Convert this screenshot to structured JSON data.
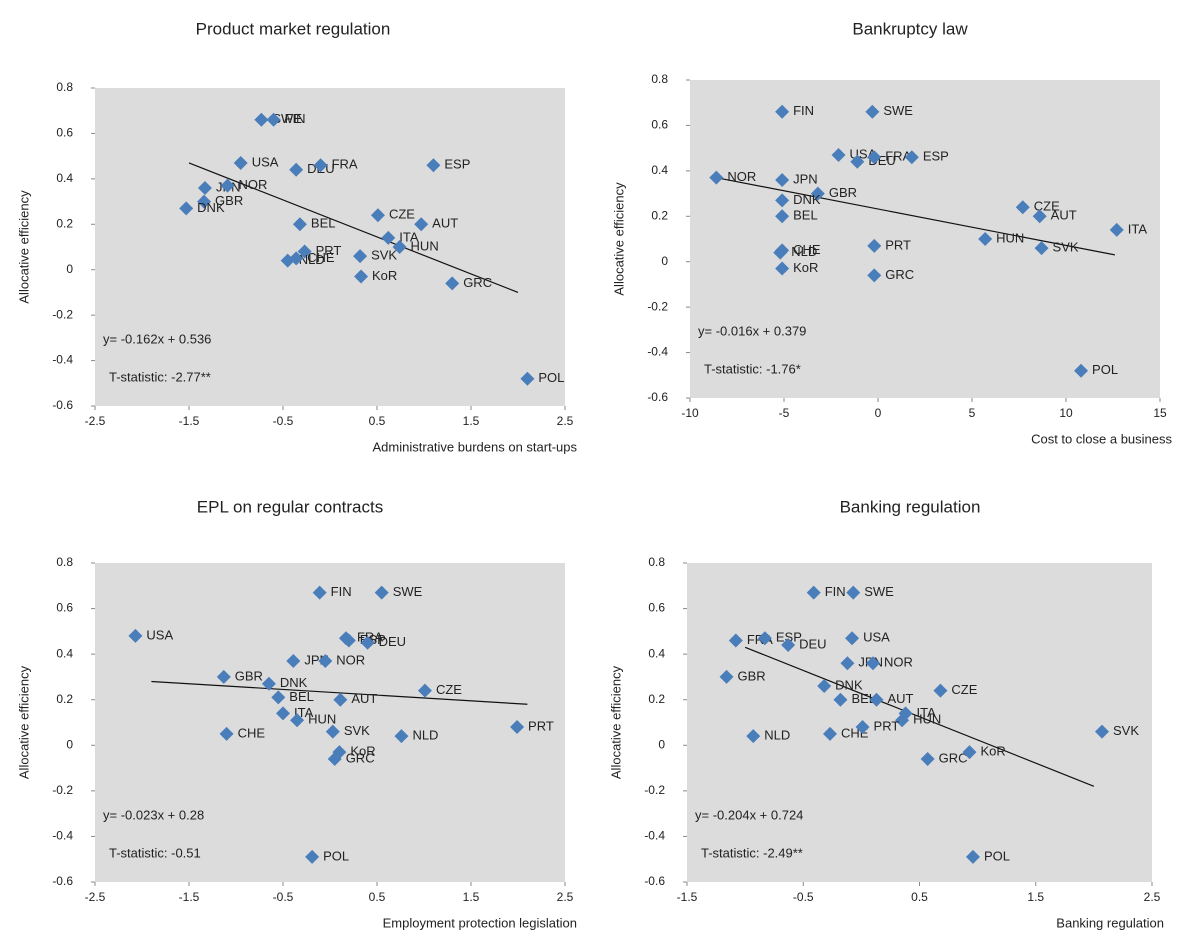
{
  "chart_data": [
    {
      "type": "scatter",
      "title": "Product market regulation",
      "x_label": "Administrative burdens on start-ups",
      "y_label": "Allocative efficiency",
      "color": "#4a7ebb",
      "labels": [
        "SWE",
        "FIN",
        "USA",
        "DEU",
        "FRA",
        "ESP",
        "JPN",
        "NOR",
        "GBR",
        "DNK",
        "BEL",
        "CZE",
        "AUT",
        "ITA",
        "HUN",
        "SVK",
        "PRT",
        "NLD",
        "CHE",
        "KoR",
        "GRC",
        "POL"
      ],
      "x": [
        -0.73,
        -0.6,
        -0.95,
        -0.36,
        -0.1,
        1.1,
        -1.33,
        -1.09,
        -1.34,
        -1.53,
        -0.32,
        0.51,
        0.97,
        0.62,
        0.74,
        0.32,
        -0.27,
        -0.45,
        -0.36,
        0.33,
        1.3,
        2.1
      ],
      "y": [
        0.66,
        0.66,
        0.47,
        0.44,
        0.46,
        0.46,
        0.36,
        0.37,
        0.3,
        0.27,
        0.2,
        0.24,
        0.2,
        0.14,
        0.1,
        0.06,
        0.08,
        0.04,
        0.05,
        -0.03,
        -0.06,
        -0.48
      ],
      "trend": {
        "x": [
          -1.5,
          2.0
        ],
        "y": [
          0.47,
          -0.1
        ]
      },
      "equation": "y= -0.162x + 0.536",
      "t_statistic": "T-statistic: -2.77**",
      "xlim": [
        -2.5,
        2.5
      ],
      "xticks": [
        -2.5,
        -1.5,
        -0.5,
        0.5,
        1.5,
        2.5
      ],
      "ylim": [
        -0.6,
        0.8
      ],
      "yticks": [
        0.8,
        0.6,
        0.4,
        0.2,
        0,
        -0.2,
        -0.4,
        -0.6
      ]
    },
    {
      "type": "scatter",
      "title": "Bankruptcy law",
      "x_label": "Cost to close a business",
      "y_label": "Allocative efficiency",
      "color": "#4a7ebb",
      "labels": [
        "FIN",
        "SWE",
        "USA",
        "DEU",
        "FRA",
        "ESP",
        "NOR",
        "JPN",
        "GBR",
        "DNK",
        "BEL",
        "CZE",
        "AUT",
        "ITA",
        "HUN",
        "CHE",
        "NLD",
        "SVK",
        "PRT",
        "KoR",
        "GRC",
        "POL"
      ],
      "x": [
        -5.1,
        -0.3,
        -2.1,
        -1.1,
        -0.2,
        1.8,
        -8.6,
        -5.1,
        -3.2,
        -5.1,
        -5.1,
        7.7,
        8.6,
        12.7,
        5.7,
        -5.1,
        -5.2,
        8.7,
        -0.2,
        -5.1,
        -0.2,
        10.8
      ],
      "y": [
        0.66,
        0.66,
        0.47,
        0.44,
        0.46,
        0.46,
        0.37,
        0.36,
        0.3,
        0.27,
        0.2,
        0.24,
        0.2,
        0.14,
        0.1,
        0.05,
        0.04,
        0.06,
        0.07,
        -0.03,
        -0.06,
        -0.48
      ],
      "trend": {
        "x": [
          -8.6,
          12.6
        ],
        "y": [
          0.37,
          0.03
        ]
      },
      "equation": "y= -0.016x + 0.379",
      "t_statistic": "T-statistic: -1.76*",
      "xlim": [
        -10,
        15
      ],
      "xticks": [
        -10,
        -5,
        0,
        5,
        10,
        15
      ],
      "ylim": [
        -0.6,
        0.8
      ],
      "yticks": [
        0.8,
        0.6,
        0.4,
        0.2,
        0,
        -0.2,
        -0.4,
        -0.6
      ]
    },
    {
      "type": "scatter",
      "title": "EPL on regular contracts",
      "x_label": "Employment protection legislation",
      "y_label": "Allocative efficiency",
      "color": "#4a7ebb",
      "labels": [
        "FIN",
        "SWE",
        "USA",
        "FRA",
        "ESP",
        "DEU",
        "JPN",
        "NOR",
        "GBR",
        "DNK",
        "BEL",
        "AUT",
        "CZE",
        "ITA",
        "HUN",
        "SVK",
        "CHE",
        "NLD",
        "PRT",
        "KoR",
        "GRC",
        "POL"
      ],
      "x": [
        -0.11,
        0.55,
        -2.07,
        0.17,
        0.2,
        0.4,
        -0.39,
        -0.05,
        -1.13,
        -0.65,
        -0.55,
        0.11,
        1.01,
        -0.5,
        -0.35,
        0.03,
        -1.1,
        0.76,
        1.99,
        0.1,
        0.05,
        -0.19
      ],
      "y": [
        0.67,
        0.67,
        0.48,
        0.47,
        0.46,
        0.45,
        0.37,
        0.37,
        0.3,
        0.27,
        0.21,
        0.2,
        0.24,
        0.14,
        0.11,
        0.06,
        0.05,
        0.04,
        0.08,
        -0.03,
        -0.06,
        -0.49
      ],
      "trend": {
        "x": [
          -1.9,
          2.1
        ],
        "y": [
          0.28,
          0.18
        ]
      },
      "equation": "y= -0.023x + 0.28",
      "t_statistic": "T-statistic: -0.51",
      "xlim": [
        -2.5,
        2.5
      ],
      "xticks": [
        -2.5,
        -1.5,
        -0.5,
        0.5,
        1.5,
        2.5
      ],
      "ylim": [
        -0.6,
        0.8
      ],
      "yticks": [
        0.8,
        0.6,
        0.4,
        0.2,
        0,
        -0.2,
        -0.4,
        -0.6
      ]
    },
    {
      "type": "scatter",
      "title": "Banking regulation",
      "x_label": "Banking regulation",
      "y_label": "Allocative efficiency",
      "color": "#4a7ebb",
      "labels": [
        "FIN",
        "SWE",
        "FRA",
        "ESP",
        "DEU",
        "USA",
        "JPN",
        "NOR",
        "GBR",
        "DNK",
        "BEL",
        "AUT",
        "CZE",
        "ITA",
        "HUN",
        "NLD",
        "CHE",
        "PRT",
        "SVK",
        "GRC",
        "KoR",
        "POL"
      ],
      "x": [
        -0.41,
        -0.07,
        -1.08,
        -0.83,
        -0.63,
        -0.08,
        -0.12,
        0.1,
        -1.16,
        -0.32,
        -0.18,
        0.13,
        0.68,
        0.38,
        0.35,
        -0.93,
        -0.27,
        0.01,
        2.07,
        0.57,
        0.93,
        0.96
      ],
      "y": [
        0.67,
        0.67,
        0.46,
        0.47,
        0.44,
        0.47,
        0.36,
        0.36,
        0.3,
        0.26,
        0.2,
        0.2,
        0.24,
        0.14,
        0.11,
        0.04,
        0.05,
        0.08,
        0.06,
        -0.06,
        -0.03,
        -0.49
      ],
      "trend": {
        "x": [
          -1.0,
          2.0
        ],
        "y": [
          0.43,
          -0.18
        ]
      },
      "equation": "y= -0.204x + 0.724",
      "t_statistic": "T-statistic: -2.49**",
      "xlim": [
        -1.5,
        2.5
      ],
      "xticks": [
        -1.5,
        -0.5,
        0.5,
        1.5,
        2.5
      ],
      "ylim": [
        -0.6,
        0.8
      ],
      "yticks": [
        0.8,
        0.6,
        0.4,
        0.2,
        0,
        -0.2,
        -0.4,
        -0.6
      ]
    }
  ]
}
